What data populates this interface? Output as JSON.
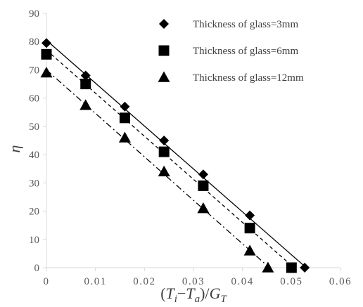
{
  "chart_data": {
    "type": "scatter",
    "title": "",
    "xlabel_parts": [
      "(",
      "T",
      "i",
      "−",
      "T",
      "a",
      ")/",
      "G",
      "T"
    ],
    "ylabel": "η",
    "xlim": [
      0,
      0.06
    ],
    "ylim": [
      0,
      90
    ],
    "x_ticks": [
      "0",
      "0.01",
      "0.02",
      "0.03",
      "0.04",
      "0.05",
      "0.06"
    ],
    "y_ticks": [
      "0",
      "10",
      "20",
      "30",
      "40",
      "50",
      "60",
      "70",
      "80",
      "90"
    ],
    "grid": false,
    "legend_position": "top-right",
    "series": [
      {
        "name": "Thickness of glass=3mm",
        "marker": "diamond",
        "line_style": "solid",
        "x": [
          0,
          0.008,
          0.016,
          0.024,
          0.032,
          0.0415,
          0.0527
        ],
        "y": [
          79.5,
          68,
          57,
          45,
          33,
          18.5,
          0
        ],
        "fit_line": {
          "x": [
            0,
            0.053
          ],
          "y": [
            80.5,
            0
          ]
        }
      },
      {
        "name": "Thickness of glass=6mm",
        "marker": "square",
        "line_style": "dashed",
        "x": [
          0,
          0.008,
          0.016,
          0.024,
          0.032,
          0.0415,
          0.05
        ],
        "y": [
          75.5,
          65,
          53,
          41,
          29,
          14,
          0
        ],
        "fit_line": {
          "x": [
            0,
            0.0505
          ],
          "y": [
            77,
            0
          ]
        }
      },
      {
        "name": "Thickness of glass=12mm",
        "marker": "triangle",
        "line_style": "dashdot",
        "x": [
          0,
          0.008,
          0.016,
          0.024,
          0.032,
          0.0415,
          0.0452
        ],
        "y": [
          69,
          57.5,
          46,
          34,
          21,
          6,
          0
        ],
        "fit_line": {
          "x": [
            0,
            0.0455
          ],
          "y": [
            70,
            0
          ]
        }
      }
    ],
    "colors": {
      "marker": "#000000",
      "axis": "#d9d9d9",
      "text": "#595959"
    }
  }
}
